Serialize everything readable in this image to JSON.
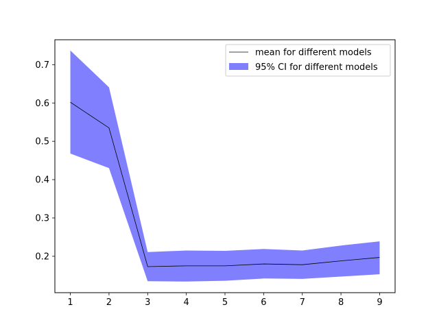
{
  "chart_data": {
    "type": "line",
    "title": "",
    "xlabel": "",
    "ylabel": "",
    "x": [
      1,
      2,
      3,
      4,
      5,
      6,
      7,
      8,
      9
    ],
    "xlim": [
      0.6,
      9.4
    ],
    "ylim": [
      0.105,
      0.765
    ],
    "xticks": [
      1,
      2,
      3,
      4,
      5,
      6,
      7,
      8,
      9
    ],
    "yticks": [
      0.2,
      0.3,
      0.4,
      0.5,
      0.6,
      0.7
    ],
    "grid": false,
    "legend_position": "top-right",
    "series": [
      {
        "name": "mean for different models",
        "kind": "line",
        "color": "#000000",
        "values": [
          0.602,
          0.535,
          0.173,
          0.175,
          0.175,
          0.18,
          0.178,
          0.188,
          0.197
        ]
      },
      {
        "name": "95% CI for different models",
        "kind": "band",
        "color": "#8080ff",
        "lower": [
          0.468,
          0.43,
          0.135,
          0.134,
          0.136,
          0.142,
          0.141,
          0.147,
          0.153
        ],
        "upper": [
          0.737,
          0.641,
          0.211,
          0.215,
          0.214,
          0.219,
          0.215,
          0.228,
          0.239
        ]
      }
    ]
  }
}
